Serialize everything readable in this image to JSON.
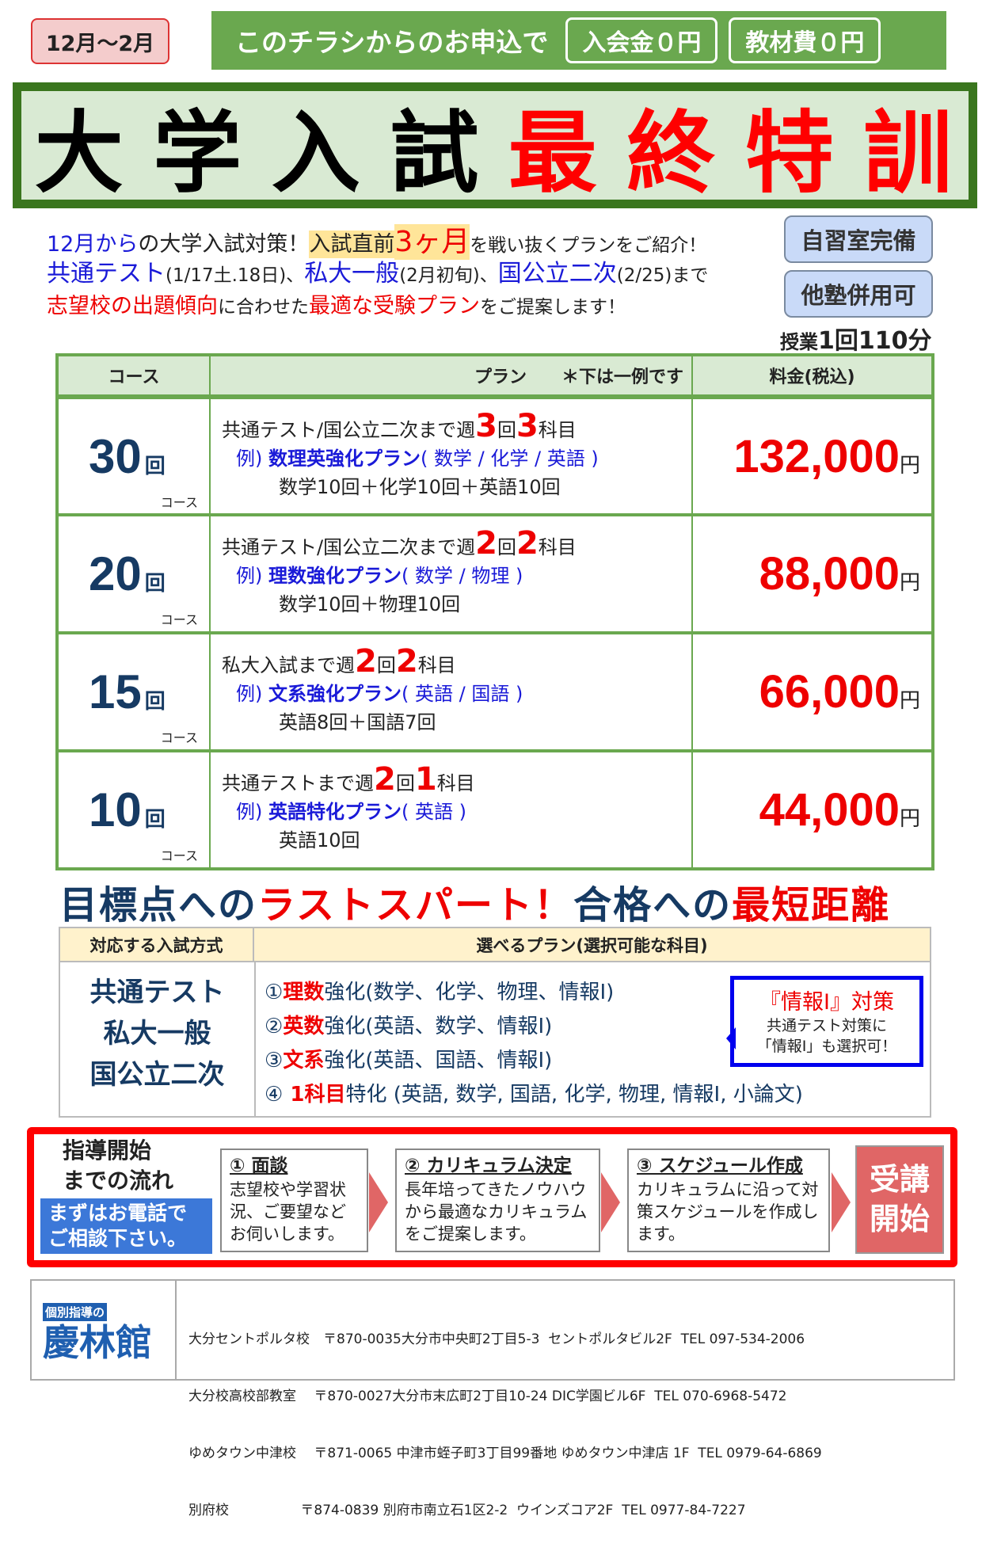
{
  "header": {
    "period": "12月～2月",
    "offer_lead": "このチラシからのお申込で",
    "offers": [
      "入会金０円",
      "教材費０円"
    ]
  },
  "title": {
    "black": [
      "大",
      "学",
      "入",
      "試"
    ],
    "red": [
      "最",
      "終",
      "特",
      "訓"
    ]
  },
  "intro": {
    "lines": [
      [
        {
          "t": "12月から",
          "c": "blue"
        },
        {
          "t": "の大学入試対策！",
          "c": "bk"
        },
        {
          "t": "入試直前",
          "c": "bk",
          "hl": true
        },
        {
          "t": "3ヶ月",
          "c": "red",
          "hl": true,
          "big": true
        },
        {
          "t": "を戦い抜くプランをご紹介！",
          "c": "bk",
          "sm": true
        }
      ],
      [
        {
          "t": "共通テスト",
          "c": "blue",
          "big": true
        },
        {
          "t": "(1/17土.18日)、",
          "c": "bk",
          "sm": true
        },
        {
          "t": "私大一般",
          "c": "blue",
          "big": true
        },
        {
          "t": "(2月初旬)、",
          "c": "bk",
          "sm": true
        },
        {
          "t": "国公立二次",
          "c": "blue",
          "big": true
        },
        {
          "t": "(2/25)まで",
          "c": "bk",
          "sm": true
        }
      ],
      [
        {
          "t": "志望校の出題傾向",
          "c": "red"
        },
        {
          "t": "に合わせた",
          "c": "bk",
          "sm": true
        },
        {
          "t": "最適な受験プラン",
          "c": "red"
        },
        {
          "t": "をご提案します！",
          "c": "bk",
          "sm": true
        }
      ]
    ]
  },
  "side": {
    "buttons": [
      "自習室完備",
      "他塾併用可"
    ],
    "lesson_prefix": "授業",
    "lesson_count": "1回",
    "lesson_minutes": "110分"
  },
  "plans": {
    "headers": {
      "course": "コース",
      "plan": "プラン　　＊下は一例です",
      "price": "料金(税込)"
    },
    "course_suffix": "回",
    "course_label": "コース",
    "yen": "円",
    "rows": [
      {
        "count": "30",
        "line1": [
          {
            "t": "共通テスト/国公立二次まで週"
          },
          {
            "t": "3",
            "big": true
          },
          {
            "t": "回"
          },
          {
            "t": "3",
            "big": true
          },
          {
            "t": "科目"
          }
        ],
        "ex_prefix": "例)",
        "ex_name": "数理英強化プラン",
        "ex_subjects": "( 数学 / 化学 / 英語 )",
        "breakdown": "数学10回＋化学10回＋英語10回",
        "price": "132,000"
      },
      {
        "count": "20",
        "line1": [
          {
            "t": "共通テスト/国公立二次まで週"
          },
          {
            "t": "2",
            "big": true
          },
          {
            "t": "回"
          },
          {
            "t": "2",
            "big": true
          },
          {
            "t": "科目"
          }
        ],
        "ex_prefix": "例)",
        "ex_name": "理数強化プラン",
        "ex_subjects": "( 数学 / 物理 )",
        "breakdown": "数学10回＋物理10回",
        "price": "88,000"
      },
      {
        "count": "15",
        "line1": [
          {
            "t": "私大入試まで週"
          },
          {
            "t": "2",
            "big": true
          },
          {
            "t": "回"
          },
          {
            "t": "2",
            "big": true
          },
          {
            "t": "科目"
          }
        ],
        "ex_prefix": "例)",
        "ex_name": "文系強化プラン",
        "ex_subjects": "( 英語 / 国語 )",
        "breakdown": "英語8回＋国語7回",
        "price": "66,000"
      },
      {
        "count": "10",
        "line1": [
          {
            "t": "共通テストまで週"
          },
          {
            "t": "2",
            "big": true
          },
          {
            "t": "回"
          },
          {
            "t": "1",
            "big": true
          },
          {
            "t": "科目"
          }
        ],
        "ex_prefix": "例)",
        "ex_name": "英語特化プラン",
        "ex_subjects": "( 英語 )",
        "breakdown": "英語10回",
        "price": "44,000"
      }
    ]
  },
  "slogan": [
    {
      "t": "目標点への",
      "c": "navy"
    },
    {
      "t": "ラストスパート！",
      "c": "red"
    },
    {
      "t": "合格への",
      "c": "navy"
    },
    {
      "t": "最短距離",
      "c": "red"
    }
  ],
  "exam": {
    "header_left": "対応する入試方式",
    "header_right": "選べるプラン(選択可能な科目)",
    "types": [
      "共通テスト",
      "私大一般",
      "国公立二次"
    ],
    "choices": [
      {
        "num": "①",
        "kw": "理数",
        "rest": "強化(数学、化学、物理、情報Ⅰ)"
      },
      {
        "num": "②",
        "kw": "英数",
        "rest": "強化(英語、数学、情報Ⅰ)"
      },
      {
        "num": "③",
        "kw": "文系",
        "rest": "強化(英語、国語、情報Ⅰ)"
      },
      {
        "num": "④",
        "kw": " 1科目",
        "rest": "特化 (英語, 数学, 国語, 化学, 物理, 情報Ⅰ, 小論文)"
      }
    ]
  },
  "callout": {
    "title": "『情報Ⅰ』対策",
    "line1": "共通テスト対策に",
    "line2": "「情報Ⅰ」も選択可！"
  },
  "flow": {
    "title1": "指導開始",
    "title2": "までの流れ",
    "call1": "まずはお電話で",
    "call2": "ご相談下さい。",
    "steps": [
      {
        "title": "① 面談",
        "body": "志望校や学習状況、ご要望などお伺いします。"
      },
      {
        "title": "② カリキュラム決定",
        "body": "長年培ってきたノウハウから最適なカリキュラムをご提案します。"
      },
      {
        "title": "③ スケジュール作成",
        "body": "カリキュラムに沿って対策スケジュールを作成します。"
      }
    ],
    "start1": "受講",
    "start2": "開始"
  },
  "footer": {
    "logo_sub": "個別指導の",
    "logo_name": "慶林館",
    "branches": [
      "大分セントポルタ校　〒870-0035大分市中央町2丁目5-3  セントポルタビル2F  TEL 097-534-2006",
      "大分校高校部教室　 〒870-0027大分市末広町2丁目10-24 DIC学園ビル6F  TEL 070-6968-5472",
      "ゆめタウン中津校　 〒871-0065 中津市蛭子町3丁目99番地 ゆめタウン中津店 1F  TEL 0979-64-6869",
      "別府校　　　　　 〒874-0839 別府市南立石1区2-2  ウインズコア2F  TEL 0977-84-7227"
    ]
  }
}
